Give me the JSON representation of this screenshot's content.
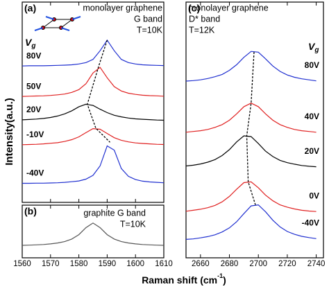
{
  "y_label": "Intensity(a.u.)",
  "x_label": {
    "text": "Raman shift (cm",
    "sup": "-1",
    "end": ")"
  },
  "chart_data": [
    {
      "type": "line",
      "panel_label": "(a)",
      "annotations": [
        "monolayer graphene",
        "G band",
        "T=10K"
      ],
      "vg_label": {
        "main": "V",
        "sub": "g"
      },
      "x": [
        1560,
        1562.5,
        1565,
        1567.5,
        1570,
        1572.5,
        1575,
        1577.5,
        1580,
        1582.5,
        1585,
        1587.5,
        1590,
        1592.5,
        1595,
        1597.5,
        1600,
        1602.5,
        1605,
        1607.5,
        1610
      ],
      "xlim": [
        1560,
        1610
      ],
      "ylim": [
        0,
        10
      ],
      "series": [
        {
          "name": "80V",
          "color": "#1f2fd0",
          "values": [
            6.81,
            6.82,
            6.82,
            6.82,
            6.83,
            6.84,
            6.85,
            6.87,
            6.91,
            6.98,
            7.14,
            7.57,
            8.1,
            7.57,
            7.14,
            6.98,
            6.91,
            6.87,
            6.85,
            6.84,
            6.83
          ]
        },
        {
          "name": "50V",
          "color": "#e02020",
          "values": [
            5.29,
            5.3,
            5.31,
            5.32,
            5.34,
            5.37,
            5.41,
            5.49,
            5.63,
            5.92,
            6.46,
            6.74,
            6.22,
            5.78,
            5.56,
            5.45,
            5.39,
            5.35,
            5.33,
            5.32,
            5.3
          ]
        },
        {
          "name": "20V",
          "color": "#000000",
          "values": [
            4.12,
            4.14,
            4.16,
            4.19,
            4.24,
            4.31,
            4.42,
            4.57,
            4.77,
            4.9,
            4.84,
            4.65,
            4.48,
            4.35,
            4.27,
            4.21,
            4.17,
            4.15,
            4.13,
            4.11,
            4.1
          ]
        },
        {
          "name": "-10V",
          "color": "#e02020",
          "values": [
            2.88,
            2.89,
            2.9,
            2.92,
            2.95,
            2.98,
            3.04,
            3.13,
            3.27,
            3.48,
            3.68,
            3.65,
            3.44,
            3.23,
            3.1,
            3.02,
            2.97,
            2.94,
            2.92,
            2.9,
            2.89
          ]
        },
        {
          "name": "-40V",
          "color": "#1f2fd0",
          "values": [
            0.95,
            0.95,
            0.96,
            0.96,
            0.97,
            0.98,
            1.0,
            1.03,
            1.07,
            1.16,
            1.35,
            1.82,
            2.82,
            2.61,
            1.69,
            1.3,
            1.14,
            1.06,
            1.02,
            1.0,
            0.98
          ]
        }
      ],
      "peak_trace": {
        "x": [
          1590,
          1587,
          1583,
          1586,
          1591
        ],
        "values": [
          8.1,
          6.8,
          4.9,
          3.7,
          3.0
        ]
      }
    },
    {
      "type": "line",
      "panel_label": "(b)",
      "annotations": [
        "graphite G band",
        "T=10K"
      ],
      "x": [
        1560,
        1562.5,
        1565,
        1567.5,
        1570,
        1572.5,
        1575,
        1577.5,
        1580,
        1582.5,
        1585,
        1587.5,
        1590,
        1592.5,
        1595,
        1597.5,
        1600,
        1602.5,
        1605,
        1607.5,
        1610
      ],
      "xlim": [
        1560,
        1610
      ],
      "ylim": [
        0,
        10
      ],
      "xticks": [
        1560,
        1570,
        1580,
        1590,
        1600,
        1610
      ],
      "series": [
        {
          "color": "#555555",
          "values": [
            2.37,
            2.41,
            2.46,
            2.53,
            2.64,
            2.81,
            3.08,
            3.56,
            4.4,
            5.72,
            6.6,
            5.72,
            4.4,
            3.56,
            3.08,
            2.81,
            2.64,
            2.53,
            2.46,
            2.41,
            2.37
          ]
        }
      ]
    },
    {
      "type": "line",
      "panel_label": "(c)",
      "annotations": [
        "monolayer graphene",
        "D* band",
        "T=12K"
      ],
      "vg_label": {
        "main": "V",
        "sub": "g"
      },
      "x": [
        2650,
        2655,
        2660,
        2665,
        2670,
        2675,
        2680,
        2685,
        2690,
        2695,
        2700,
        2705,
        2710,
        2715,
        2720,
        2725,
        2730,
        2735,
        2740
      ],
      "xlim": [
        2650,
        2745
      ],
      "ylim": [
        0,
        10
      ],
      "xticks": [
        2660,
        2680,
        2700,
        2720,
        2740
      ],
      "series": [
        {
          "name": "80V",
          "color": "#1f2fd0",
          "values": [
            6.91,
            6.93,
            6.96,
            7.01,
            7.08,
            7.17,
            7.33,
            7.55,
            7.84,
            8.07,
            8.04,
            7.78,
            7.5,
            7.29,
            7.15,
            7.06,
            7.0,
            6.96,
            6.92
          ]
        },
        {
          "name": "40V",
          "color": "#e02020",
          "values": [
            4.91,
            4.94,
            4.97,
            5.02,
            5.1,
            5.21,
            5.38,
            5.63,
            5.91,
            6.05,
            5.91,
            5.63,
            5.38,
            5.21,
            5.1,
            5.02,
            4.97,
            4.94,
            4.91
          ]
        },
        {
          "name": "20V",
          "color": "#000000",
          "values": [
            3.59,
            3.62,
            3.67,
            3.74,
            3.84,
            4.0,
            4.23,
            4.53,
            4.77,
            4.74,
            4.47,
            4.17,
            3.96,
            3.81,
            3.72,
            3.66,
            3.61,
            3.58,
            3.56
          ]
        },
        {
          "name": "0V",
          "color": "#e02020",
          "values": [
            1.82,
            1.86,
            1.9,
            1.96,
            2.05,
            2.19,
            2.4,
            2.68,
            2.94,
            2.97,
            2.74,
            2.45,
            2.23,
            2.07,
            1.98,
            1.91,
            1.86,
            1.83,
            1.81
          ]
        },
        {
          "name": "-40V",
          "color": "#1f2fd0",
          "values": [
            0.72,
            0.74,
            0.78,
            0.83,
            0.9,
            1.01,
            1.17,
            1.41,
            1.73,
            2.03,
            2.07,
            1.8,
            1.47,
            1.21,
            1.03,
            0.92,
            0.84,
            0.79,
            0.75
          ]
        }
      ],
      "peak_trace": {
        "x": [
          2697,
          2695,
          2692,
          2693,
          2698
        ],
        "values": [
          8.05,
          6.05,
          4.77,
          2.97,
          2.07
        ]
      }
    }
  ]
}
